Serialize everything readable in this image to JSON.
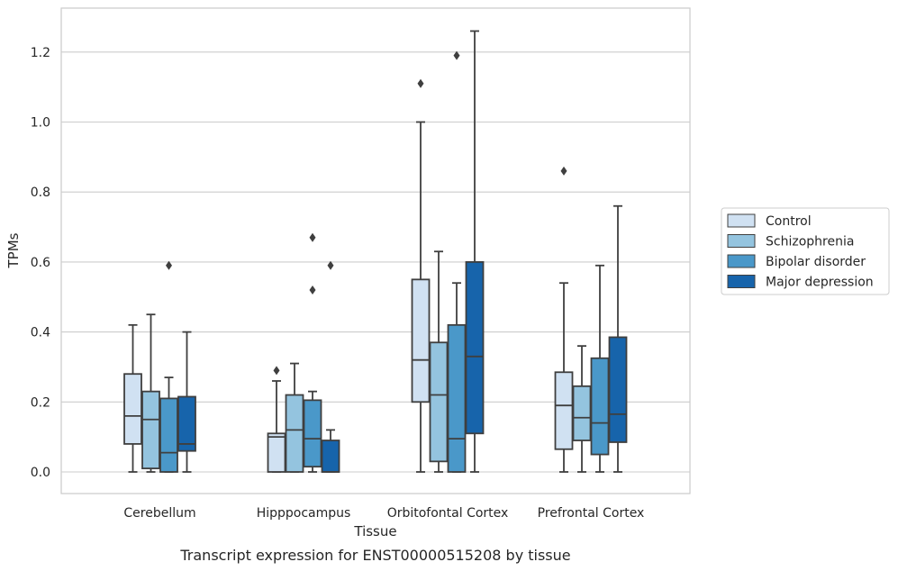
{
  "chart_data": {
    "type": "box",
    "caption": "Transcript expression for ENST00000515208 by tissue",
    "xlabel": "Tissue",
    "ylabel": "TPMs",
    "ylim": [
      -0.06,
      1.32
    ],
    "yticks": [
      "0.0",
      "0.2",
      "0.4",
      "0.6",
      "0.8",
      "1.0",
      "1.2"
    ],
    "ytick_values": [
      0,
      0.2,
      0.4,
      0.6,
      0.8,
      1.0,
      1.2
    ],
    "grid": "horizontal",
    "legend_placement": "right",
    "categories": [
      "Cerebellum",
      "Hipppocampus",
      "Orbitofontal Cortex",
      "Prefrontal Cortex"
    ],
    "series": [
      {
        "name": "Control",
        "color": "#d0e1f2",
        "boxes": [
          {
            "min": 0.0,
            "q1": 0.08,
            "median": 0.16,
            "q3": 0.28,
            "max": 0.42,
            "outliers": []
          },
          {
            "min": 0.0,
            "q1": 0.0,
            "median": 0.1,
            "q3": 0.11,
            "max": 0.26,
            "outliers": [
              0.29
            ]
          },
          {
            "min": 0.0,
            "q1": 0.2,
            "median": 0.32,
            "q3": 0.55,
            "max": 1.0,
            "outliers": [
              1.11
            ]
          },
          {
            "min": 0.0,
            "q1": 0.065,
            "median": 0.19,
            "q3": 0.285,
            "max": 0.54,
            "outliers": [
              0.86
            ]
          }
        ]
      },
      {
        "name": "Schizophrenia",
        "color": "#94c4df",
        "boxes": [
          {
            "min": 0.0,
            "q1": 0.01,
            "median": 0.15,
            "q3": 0.23,
            "max": 0.45,
            "outliers": []
          },
          {
            "min": 0.0,
            "q1": 0.0,
            "median": 0.12,
            "q3": 0.22,
            "max": 0.31,
            "outliers": []
          },
          {
            "min": 0.0,
            "q1": 0.03,
            "median": 0.22,
            "q3": 0.37,
            "max": 0.63,
            "outliers": []
          },
          {
            "min": 0.0,
            "q1": 0.09,
            "median": 0.155,
            "q3": 0.245,
            "max": 0.36,
            "outliers": []
          }
        ]
      },
      {
        "name": "Bipolar disorder",
        "color": "#4a98c9",
        "boxes": [
          {
            "min": 0.0,
            "q1": 0.0,
            "median": 0.055,
            "q3": 0.21,
            "max": 0.27,
            "outliers": [
              0.59
            ]
          },
          {
            "min": 0.0,
            "q1": 0.015,
            "median": 0.095,
            "q3": 0.205,
            "max": 0.23,
            "outliers": [
              0.52,
              0.67
            ]
          },
          {
            "min": 0.0,
            "q1": 0.0,
            "median": 0.095,
            "q3": 0.42,
            "max": 0.54,
            "outliers": [
              1.19
            ]
          },
          {
            "min": 0.0,
            "q1": 0.05,
            "median": 0.14,
            "q3": 0.325,
            "max": 0.59,
            "outliers": []
          }
        ]
      },
      {
        "name": "Major depression",
        "color": "#1764ab",
        "boxes": [
          {
            "min": 0.0,
            "q1": 0.06,
            "median": 0.08,
            "q3": 0.215,
            "max": 0.4,
            "outliers": []
          },
          {
            "min": 0.0,
            "q1": 0.0,
            "median": 0.0,
            "q3": 0.09,
            "max": 0.12,
            "outliers": [
              0.59
            ]
          },
          {
            "min": 0.0,
            "q1": 0.11,
            "median": 0.33,
            "q3": 0.6,
            "max": 1.26,
            "outliers": []
          },
          {
            "min": 0.0,
            "q1": 0.085,
            "median": 0.165,
            "q3": 0.385,
            "max": 0.76,
            "outliers": []
          }
        ]
      }
    ]
  }
}
